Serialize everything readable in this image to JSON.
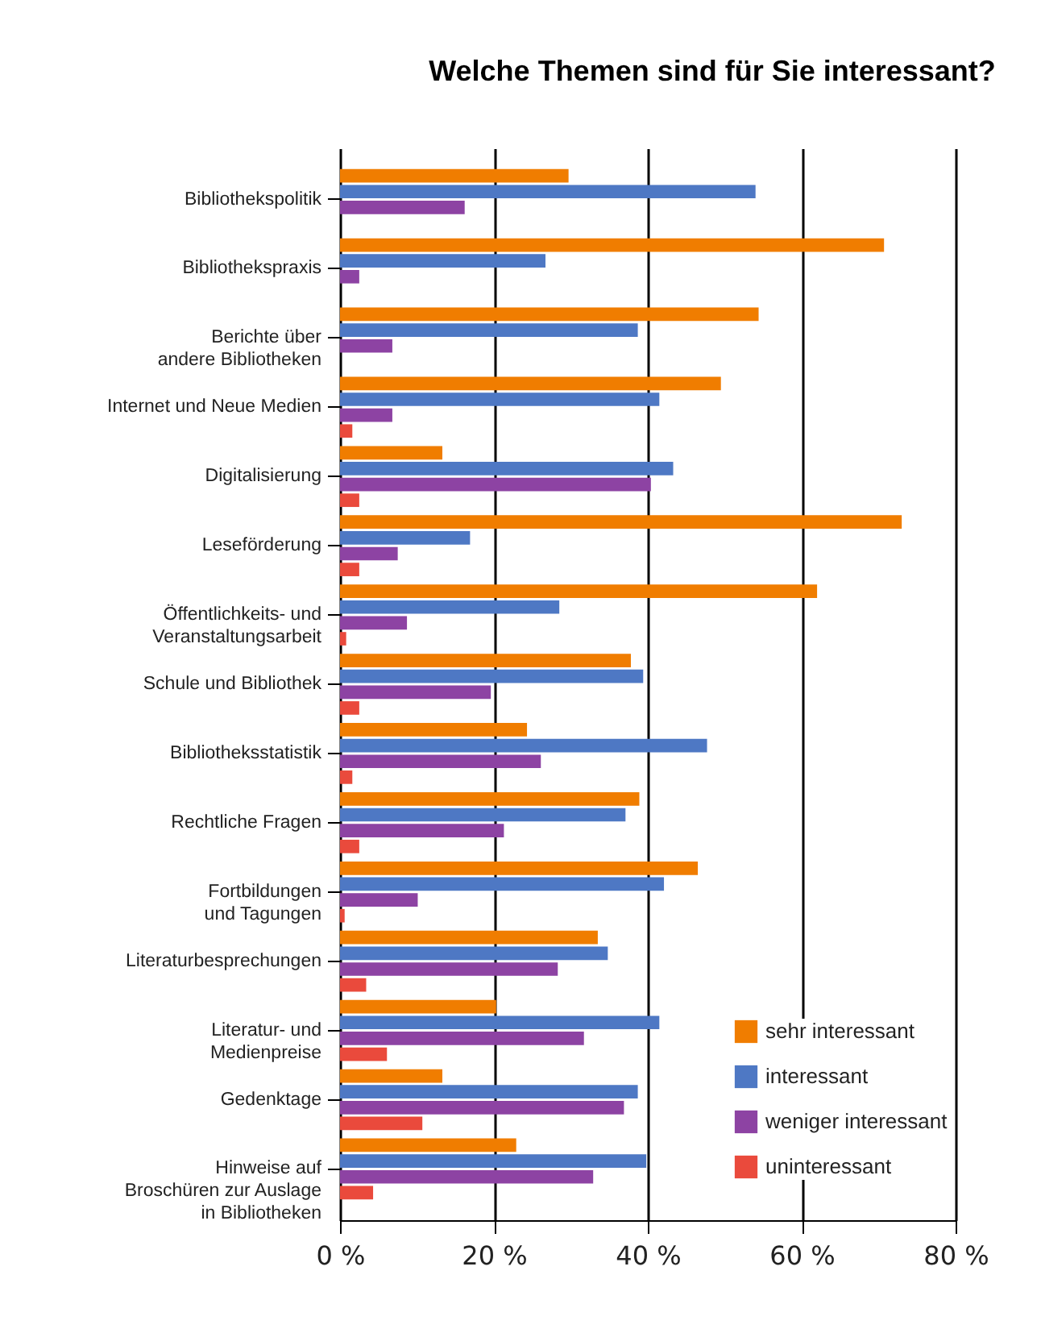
{
  "chart_data": {
    "type": "bar",
    "orientation": "horizontal",
    "title": "Welche Themen sind für Sie interessant?",
    "categories": [
      "Bibliothekspolitik",
      "Bibliothekspraxis",
      "Berichte über\nandere Bibliotheken",
      "Internet und Neue Medien",
      "Digitalisierung",
      "Leseförderung",
      "Öffentlichkeits- und\nVeranstaltungsarbeit",
      "Schule und Bibliothek",
      "Bibliotheksstatistik",
      "Rechtliche Fragen",
      "Fortbildungen\nund Tagungen",
      "Literaturbesprechungen",
      "Literatur- und\nMedienpreise",
      "Gedenktage",
      "Hinweise auf\nBroschüren zur Auslage\nin Bibliotheken"
    ],
    "series": [
      {
        "name": "sehr interessant",
        "color": "#f07d00",
        "values": [
          29.7,
          70.7,
          54.4,
          49.5,
          13.3,
          73.0,
          62.0,
          37.8,
          24.3,
          38.9,
          46.5,
          33.5,
          20.3,
          13.3,
          22.9
        ]
      },
      {
        "name": "interessant",
        "color": "#4e78c4",
        "values": [
          54.0,
          26.7,
          38.7,
          41.5,
          43.3,
          16.9,
          28.5,
          39.4,
          47.7,
          37.1,
          42.1,
          34.8,
          41.5,
          38.7,
          39.8
        ]
      },
      {
        "name": "weniger interessant",
        "color": "#8d43a3",
        "values": [
          16.2,
          2.5,
          6.8,
          6.8,
          40.4,
          7.5,
          8.7,
          19.6,
          26.1,
          21.3,
          10.1,
          28.3,
          31.7,
          36.9,
          32.9
        ]
      },
      {
        "name": "uninteressant",
        "color": "#ea4a3c",
        "values": [
          null,
          null,
          null,
          1.6,
          2.5,
          2.5,
          0.8,
          2.5,
          1.6,
          2.5,
          0.6,
          3.4,
          6.1,
          10.7,
          4.3
        ]
      }
    ],
    "xlim": [
      0,
      80
    ],
    "xticks": [
      {
        "value": 0,
        "label": "0 %"
      },
      {
        "value": 20,
        "label": "20 %"
      },
      {
        "value": 40,
        "label": "40 %"
      },
      {
        "value": 60,
        "label": "60 %"
      },
      {
        "value": 80,
        "label": "80 %"
      }
    ],
    "grid": "x",
    "legend": "bottom right"
  }
}
